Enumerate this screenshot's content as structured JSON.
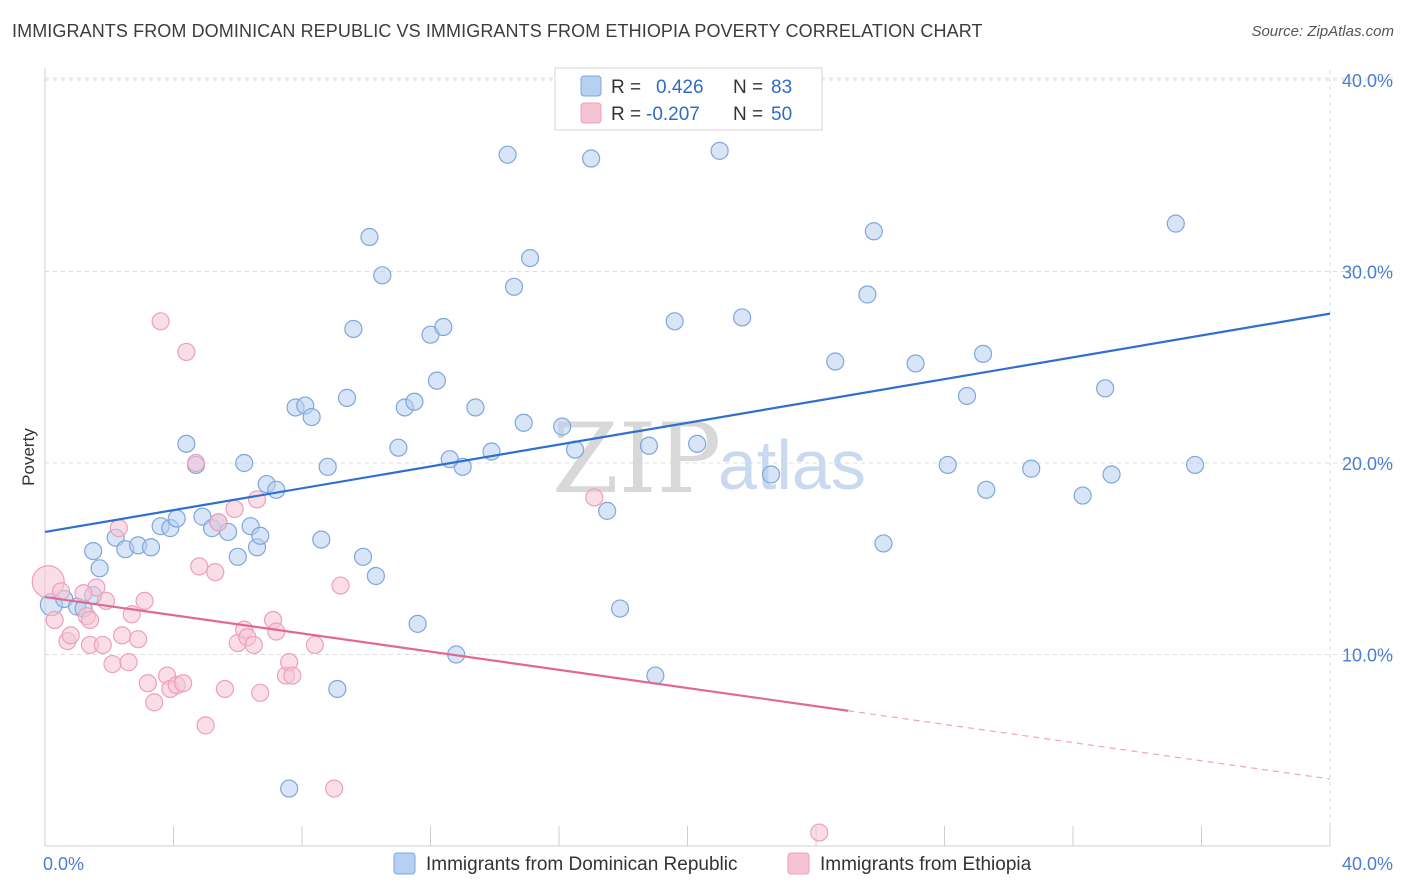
{
  "title": "IMMIGRANTS FROM DOMINICAN REPUBLIC VS IMMIGRANTS FROM ETHIOPIA POVERTY CORRELATION CHART",
  "source": "Source: ZipAtlas.com",
  "watermark": {
    "zip": "ZIP",
    "atlas": "atlas"
  },
  "colors": {
    "blue_fill": "#b7cff1",
    "blue_stroke": "#7fa6dd",
    "blue_line": "#2f6fd0",
    "pink_fill": "#f6c3d3",
    "pink_stroke": "#eea0b8",
    "pink_line": "#e06990",
    "grid": "#dcdcdc",
    "tick_label": "#4a7fd0"
  },
  "legend": {
    "items": [
      {
        "r_label": "R =",
        "r_value": "0.426",
        "n_label": "N =",
        "n_value": "83"
      },
      {
        "r_label": "R =",
        "r_value": "-0.207",
        "n_label": "N =",
        "n_value": "50"
      }
    ]
  },
  "chart_data": {
    "type": "scatter",
    "xlabel": "",
    "ylabel": "Poverty",
    "xlim": [
      0,
      40
    ],
    "ylim": [
      0,
      40
    ],
    "x_tick_labels": [
      "0.0%",
      "40.0%"
    ],
    "y_ticks": [
      10,
      20,
      30,
      40
    ],
    "y_tick_labels": [
      "10.0%",
      "20.0%",
      "30.0%",
      "40.0%"
    ],
    "grid": true,
    "legend_position": "top-center",
    "series": [
      {
        "name": "Immigrants from Dominican Republic",
        "color": "#b7cff1",
        "trend": {
          "x": [
            0,
            40
          ],
          "y": [
            16.4,
            27.8
          ],
          "dashed_from": null
        },
        "points": [
          [
            0.2,
            12.6
          ],
          [
            0.6,
            12.9
          ],
          [
            1.0,
            12.5
          ],
          [
            1.2,
            12.4
          ],
          [
            1.5,
            13.1
          ],
          [
            1.5,
            15.4
          ],
          [
            1.7,
            14.5
          ],
          [
            2.2,
            16.1
          ],
          [
            2.5,
            15.5
          ],
          [
            2.9,
            15.7
          ],
          [
            3.3,
            15.6
          ],
          [
            3.6,
            16.7
          ],
          [
            3.9,
            16.6
          ],
          [
            4.1,
            17.1
          ],
          [
            4.4,
            21.0
          ],
          [
            4.7,
            19.9
          ],
          [
            4.9,
            17.2
          ],
          [
            5.2,
            16.6
          ],
          [
            5.4,
            16.9
          ],
          [
            5.7,
            16.4
          ],
          [
            6.0,
            15.1
          ],
          [
            6.2,
            20.0
          ],
          [
            6.4,
            16.7
          ],
          [
            6.6,
            15.6
          ],
          [
            6.9,
            18.9
          ],
          [
            7.2,
            18.6
          ],
          [
            7.6,
            3.0
          ],
          [
            7.8,
            22.9
          ],
          [
            8.1,
            23.0
          ],
          [
            8.3,
            22.4
          ],
          [
            8.6,
            16.0
          ],
          [
            8.8,
            19.8
          ],
          [
            9.1,
            8.2
          ],
          [
            9.4,
            23.4
          ],
          [
            9.6,
            27.0
          ],
          [
            9.9,
            15.1
          ],
          [
            10.1,
            31.8
          ],
          [
            10.3,
            14.1
          ],
          [
            10.5,
            29.8
          ],
          [
            11.0,
            20.8
          ],
          [
            11.2,
            22.9
          ],
          [
            11.5,
            23.2
          ],
          [
            11.6,
            11.6
          ],
          [
            12.0,
            26.7
          ],
          [
            12.2,
            24.3
          ],
          [
            12.4,
            27.1
          ],
          [
            12.8,
            10.0
          ],
          [
            13.0,
            19.8
          ],
          [
            13.4,
            22.9
          ],
          [
            13.9,
            20.6
          ],
          [
            14.4,
            36.1
          ],
          [
            14.6,
            29.2
          ],
          [
            14.9,
            22.1
          ],
          [
            15.1,
            30.7
          ],
          [
            16.1,
            21.9
          ],
          [
            16.5,
            20.7
          ],
          [
            17.0,
            35.9
          ],
          [
            17.5,
            17.5
          ],
          [
            17.9,
            12.4
          ],
          [
            18.8,
            20.9
          ],
          [
            19.0,
            8.9
          ],
          [
            19.6,
            27.4
          ],
          [
            20.3,
            21.0
          ],
          [
            21.0,
            36.3
          ],
          [
            21.7,
            27.6
          ],
          [
            22.6,
            19.4
          ],
          [
            24.6,
            25.3
          ],
          [
            25.6,
            28.8
          ],
          [
            25.8,
            32.1
          ],
          [
            26.1,
            15.8
          ],
          [
            27.1,
            25.2
          ],
          [
            28.1,
            19.9
          ],
          [
            28.7,
            23.5
          ],
          [
            29.2,
            25.7
          ],
          [
            29.3,
            18.6
          ],
          [
            30.7,
            19.7
          ],
          [
            32.3,
            18.3
          ],
          [
            33.0,
            23.9
          ],
          [
            33.2,
            19.4
          ],
          [
            35.2,
            32.5
          ],
          [
            35.8,
            19.9
          ],
          [
            6.7,
            16.2
          ],
          [
            12.6,
            20.2
          ]
        ]
      },
      {
        "name": "Immigrants from Ethiopia",
        "color": "#f6c3d3",
        "trend": {
          "x": [
            0,
            40
          ],
          "y": [
            13.0,
            3.5
          ],
          "dashed_from": 25.0
        },
        "points": [
          [
            0.1,
            13.8
          ],
          [
            0.3,
            11.8
          ],
          [
            0.5,
            13.3
          ],
          [
            0.7,
            10.7
          ],
          [
            0.8,
            11.0
          ],
          [
            1.3,
            12.0
          ],
          [
            1.4,
            11.8
          ],
          [
            1.4,
            10.5
          ],
          [
            1.6,
            13.5
          ],
          [
            1.8,
            10.5
          ],
          [
            1.9,
            12.8
          ],
          [
            2.1,
            9.5
          ],
          [
            2.3,
            16.6
          ],
          [
            2.4,
            11.0
          ],
          [
            2.6,
            9.6
          ],
          [
            2.7,
            12.1
          ],
          [
            2.9,
            10.8
          ],
          [
            3.1,
            12.8
          ],
          [
            3.2,
            8.5
          ],
          [
            3.4,
            7.5
          ],
          [
            3.6,
            27.4
          ],
          [
            3.8,
            8.9
          ],
          [
            3.9,
            8.2
          ],
          [
            4.1,
            8.4
          ],
          [
            4.3,
            8.5
          ],
          [
            4.4,
            25.8
          ],
          [
            4.7,
            20.0
          ],
          [
            4.8,
            14.6
          ],
          [
            5.0,
            6.3
          ],
          [
            5.3,
            14.3
          ],
          [
            5.4,
            16.9
          ],
          [
            5.6,
            8.2
          ],
          [
            5.9,
            17.6
          ],
          [
            6.0,
            10.6
          ],
          [
            6.2,
            11.3
          ],
          [
            6.3,
            10.9
          ],
          [
            6.5,
            10.5
          ],
          [
            6.6,
            18.1
          ],
          [
            6.7,
            8.0
          ],
          [
            7.1,
            11.8
          ],
          [
            7.2,
            11.2
          ],
          [
            7.5,
            8.9
          ],
          [
            7.6,
            9.6
          ],
          [
            7.7,
            8.9
          ],
          [
            8.4,
            10.5
          ],
          [
            9.0,
            3.0
          ],
          [
            9.2,
            13.6
          ],
          [
            17.1,
            18.2
          ],
          [
            24.1,
            0.7
          ],
          [
            1.2,
            13.2
          ]
        ]
      }
    ]
  },
  "bottom_legend": {
    "items": [
      {
        "label": "Immigrants from Dominican Republic"
      },
      {
        "label": "Immigrants from Ethiopia"
      }
    ]
  }
}
